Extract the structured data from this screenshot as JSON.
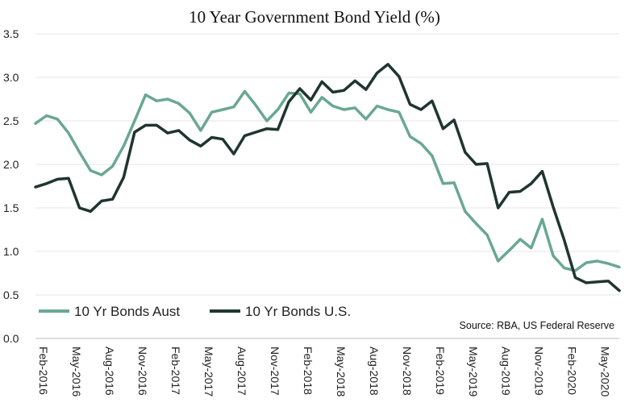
{
  "chart_data": {
    "type": "line",
    "title": "10 Year Government Bond Yield (%)",
    "xlabel": "",
    "ylabel": "",
    "ylim": [
      0,
      3.5
    ],
    "yticks": [
      "0.0",
      "0.5",
      "1.0",
      "1.5",
      "2.0",
      "2.5",
      "3.0",
      "3.5"
    ],
    "x_tick_labels": [
      "Feb-2016",
      "May-2016",
      "Aug-2016",
      "Nov-2016",
      "Feb-2017",
      "May-2017",
      "Aug-2017",
      "Nov-2017",
      "Feb-2018",
      "May-2018",
      "Aug-2018",
      "Nov-2018",
      "Feb-2019",
      "May-2019",
      "Aug-2019",
      "Nov-2019",
      "Feb-2020",
      "May-2020"
    ],
    "x": [
      "2016-02",
      "2016-03",
      "2016-04",
      "2016-05",
      "2016-06",
      "2016-07",
      "2016-08",
      "2016-09",
      "2016-10",
      "2016-11",
      "2016-12",
      "2017-01",
      "2017-02",
      "2017-03",
      "2017-04",
      "2017-05",
      "2017-06",
      "2017-07",
      "2017-08",
      "2017-09",
      "2017-10",
      "2017-11",
      "2017-12",
      "2018-01",
      "2018-02",
      "2018-03",
      "2018-04",
      "2018-05",
      "2018-06",
      "2018-07",
      "2018-08",
      "2018-09",
      "2018-10",
      "2018-11",
      "2018-12",
      "2019-01",
      "2019-02",
      "2019-03",
      "2019-04",
      "2019-05",
      "2019-06",
      "2019-07",
      "2019-08",
      "2019-09",
      "2019-10",
      "2019-11",
      "2019-12",
      "2020-01",
      "2020-02",
      "2020-03",
      "2020-04",
      "2020-05",
      "2020-06",
      "2020-07"
    ],
    "series": [
      {
        "name": "10 Yr Bonds Aust",
        "color": "#6aa890",
        "values": [
          2.47,
          2.56,
          2.52,
          2.36,
          2.14,
          1.93,
          1.88,
          1.98,
          2.21,
          2.5,
          2.8,
          2.73,
          2.75,
          2.7,
          2.59,
          2.39,
          2.6,
          2.63,
          2.66,
          2.84,
          2.68,
          2.5,
          2.63,
          2.82,
          2.81,
          2.6,
          2.77,
          2.67,
          2.63,
          2.65,
          2.52,
          2.67,
          2.63,
          2.6,
          2.32,
          2.24,
          2.1,
          1.78,
          1.79,
          1.46,
          1.32,
          1.19,
          0.89,
          1.01,
          1.14,
          1.04,
          1.37,
          0.95,
          0.81,
          0.78,
          0.87,
          0.89,
          0.86,
          0.82
        ]
      },
      {
        "name": "10 Yr Bonds U.S.",
        "color": "#1f3530",
        "values": [
          1.74,
          1.78,
          1.83,
          1.84,
          1.5,
          1.46,
          1.58,
          1.6,
          1.85,
          2.37,
          2.45,
          2.45,
          2.36,
          2.39,
          2.28,
          2.21,
          2.31,
          2.29,
          2.12,
          2.33,
          2.37,
          2.41,
          2.4,
          2.72,
          2.87,
          2.74,
          2.95,
          2.83,
          2.85,
          2.96,
          2.86,
          3.05,
          3.15,
          3.01,
          2.69,
          2.63,
          2.73,
          2.41,
          2.51,
          2.14,
          2.0,
          2.01,
          1.5,
          1.68,
          1.69,
          1.78,
          1.92,
          1.51,
          1.13,
          0.7,
          0.64,
          0.65,
          0.66,
          0.55
        ]
      }
    ],
    "legend": "bottom-left",
    "grid": true,
    "source": "Source: RBA, US Federal Reserve"
  }
}
